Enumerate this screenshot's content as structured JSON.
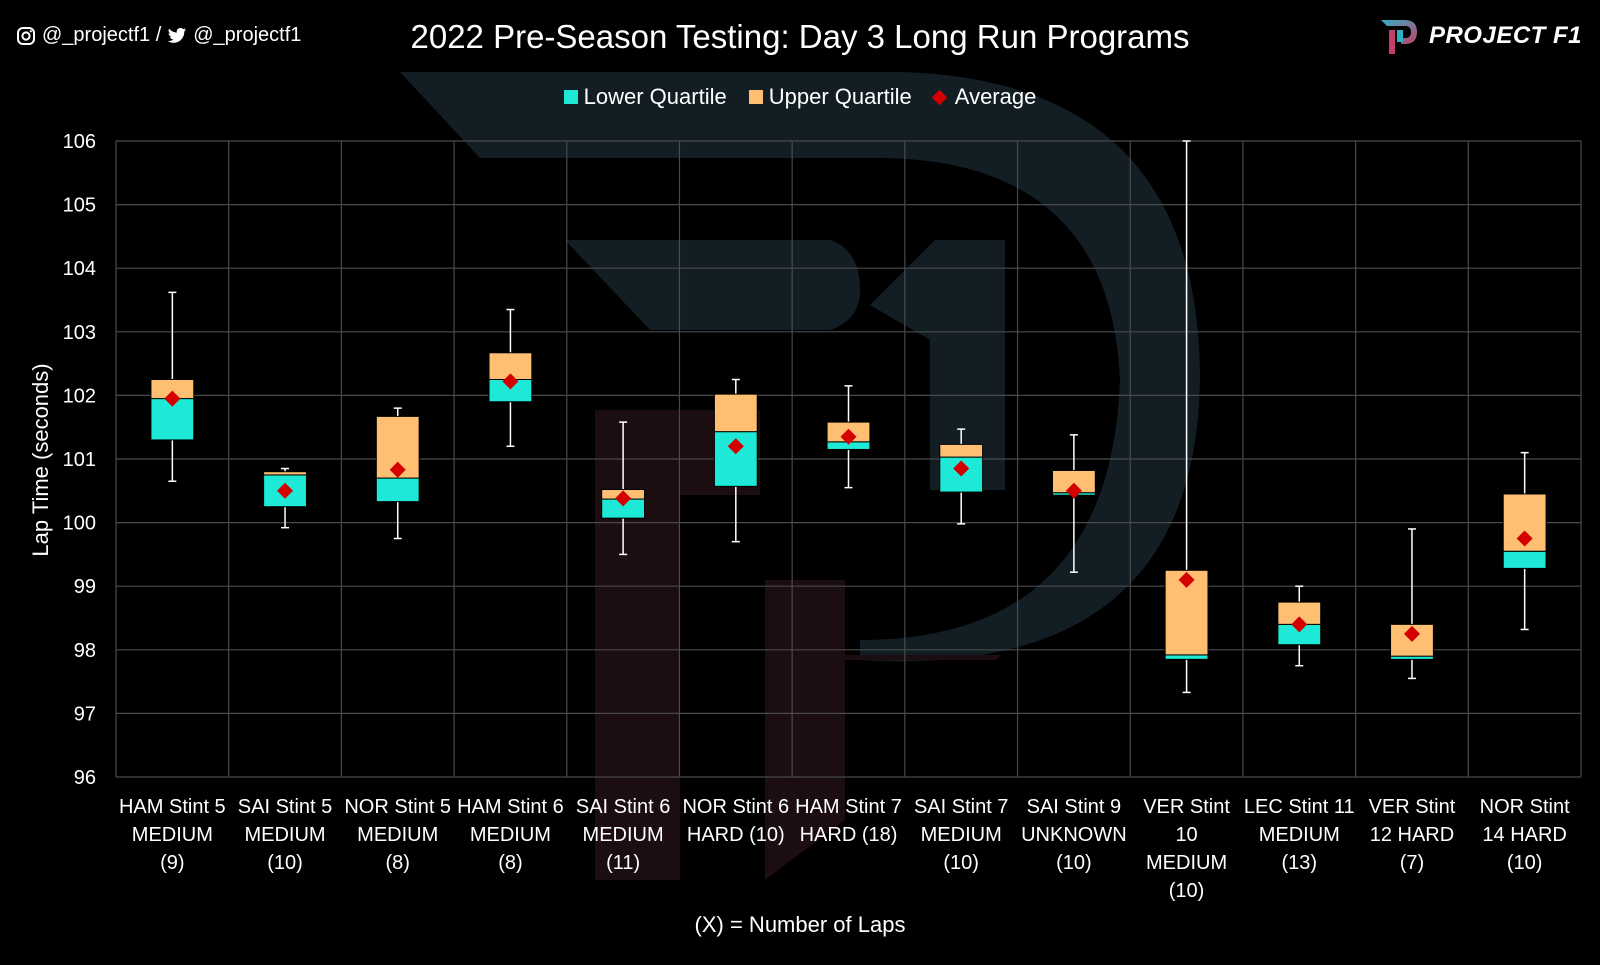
{
  "header": {
    "social_handles": "@_projectf1 / ",
    "twitter_handle": "@_projectf1",
    "brand": "PROJECT F1"
  },
  "chart_data": {
    "type": "boxplot",
    "title": "2022 Pre-Season Testing: Day 3 Long Run Programs",
    "xlabel": "(X) = Number of Laps",
    "ylabel": "Lap Time (seconds)",
    "ylim": [
      96,
      106
    ],
    "yticks": [
      96,
      97,
      98,
      99,
      100,
      101,
      102,
      103,
      104,
      105,
      106
    ],
    "grid": true,
    "legend_position": "top-center",
    "legend": [
      {
        "label": "Lower Quartile",
        "color": "#1de9d6"
      },
      {
        "label": "Upper Quartile",
        "color": "#ffbf73"
      },
      {
        "label": "Average",
        "color": "#d40000"
      }
    ],
    "categories": [
      "HAM Stint 5\nMEDIUM\n(9)",
      "SAI Stint 5\nMEDIUM\n(10)",
      "NOR Stint 5\nMEDIUM\n(8)",
      "HAM Stint 6\nMEDIUM\n(8)",
      "SAI Stint 6\nMEDIUM\n(11)",
      "NOR Stint 6\nHARD (10)",
      "HAM Stint 7\nHARD (18)",
      "SAI Stint 7\nMEDIUM\n(10)",
      "SAI Stint 9\nUNKNOWN\n(10)",
      "VER Stint\n10\nMEDIUM\n(10)",
      "LEC Stint 11\nMEDIUM\n(13)",
      "VER Stint\n12 HARD\n(7)",
      "NOR Stint\n14 HARD\n(10)"
    ],
    "boxes": [
      {
        "min": 100.65,
        "q1": 101.3,
        "median": 101.95,
        "q3": 102.25,
        "max": 103.62,
        "mean": 101.95
      },
      {
        "min": 99.92,
        "q1": 100.25,
        "median": 100.75,
        "q3": 100.8,
        "max": 100.85,
        "mean": 100.5
      },
      {
        "min": 99.75,
        "q1": 100.33,
        "median": 100.7,
        "q3": 101.67,
        "max": 101.8,
        "mean": 100.83
      },
      {
        "min": 101.2,
        "q1": 101.9,
        "median": 102.25,
        "q3": 102.67,
        "max": 103.35,
        "mean": 102.22
      },
      {
        "min": 99.5,
        "q1": 100.07,
        "median": 100.37,
        "q3": 100.52,
        "max": 101.58,
        "mean": 100.38
      },
      {
        "min": 99.7,
        "q1": 100.57,
        "median": 101.43,
        "q3": 102.02,
        "max": 102.25,
        "mean": 101.2
      },
      {
        "min": 100.55,
        "q1": 101.15,
        "median": 101.27,
        "q3": 101.58,
        "max": 102.15,
        "mean": 101.35
      },
      {
        "min": 99.98,
        "q1": 100.48,
        "median": 101.03,
        "q3": 101.23,
        "max": 101.47,
        "mean": 100.85
      },
      {
        "min": 99.22,
        "q1": 100.43,
        "median": 100.47,
        "q3": 100.82,
        "max": 101.38,
        "mean": 100.5
      },
      {
        "min": 97.33,
        "q1": 97.85,
        "median": 97.92,
        "q3": 99.25,
        "max": 106.0,
        "mean": 99.1
      },
      {
        "min": 97.75,
        "q1": 98.08,
        "median": 98.4,
        "q3": 98.75,
        "max": 99.0,
        "mean": 98.4
      },
      {
        "min": 97.55,
        "q1": 97.85,
        "median": 97.9,
        "q3": 98.4,
        "max": 99.9,
        "mean": 98.25
      },
      {
        "min": 98.32,
        "q1": 99.28,
        "median": 99.55,
        "q3": 100.45,
        "max": 101.1,
        "mean": 99.75
      }
    ]
  }
}
